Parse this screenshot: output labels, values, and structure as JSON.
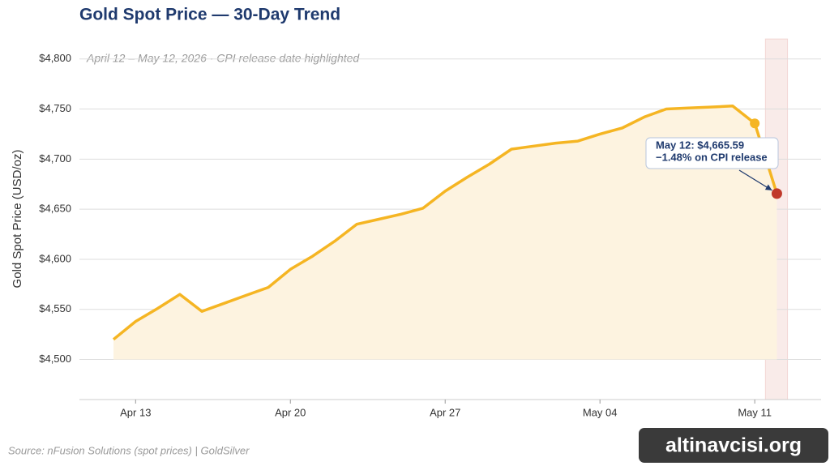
{
  "chart_data": {
    "type": "line",
    "title": "Gold Spot Price — 30-Day Trend",
    "subtitle": "April 12 – May 12, 2026  ·  CPI release date highlighted",
    "y_label": "Gold Spot Price (USD/oz)",
    "source": "Source: nFusion Solutions (spot prices) | GoldSilver",
    "watermark": "altinavcisi.org",
    "x": [
      "Apr 12",
      "Apr 13",
      "Apr 14",
      "Apr 15",
      "Apr 16",
      "Apr 17",
      "Apr 18",
      "Apr 19",
      "Apr 20",
      "Apr 21",
      "Apr 22",
      "Apr 23",
      "Apr 24",
      "Apr 25",
      "Apr 26",
      "Apr 27",
      "Apr 28",
      "Apr 29",
      "Apr 30",
      "May 01",
      "May 02",
      "May 03",
      "May 04",
      "May 05",
      "May 06",
      "May 07",
      "May 08",
      "May 09",
      "May 10",
      "May 11",
      "May 12"
    ],
    "series": [
      {
        "name": "Gold spot",
        "color": "#f5b523",
        "values": [
          4520,
          4538,
          4551,
          4565,
          4548,
          4556,
          4564,
          4572,
          4590,
          4603,
          4618,
          4635,
          4640,
          4645,
          4651,
          4668,
          4682,
          4695,
          4710,
          4713,
          4716,
          4718,
          4725,
          4731,
          4742,
          4750,
          4751,
          4752,
          4753,
          4735.7,
          4665.59
        ]
      }
    ],
    "area_color": "#fdf3e0",
    "area_base": 4500,
    "highlight": "May 12",
    "highlight_color": "#c0392b",
    "xticks": [
      "Apr 13",
      "Apr 20",
      "Apr 27",
      "May 04",
      "May 11"
    ],
    "ylim": [
      4460,
      4820
    ],
    "yticks": [
      {
        "value": 4500,
        "label": "$4,500"
      },
      {
        "value": 4550,
        "label": "$4,550"
      },
      {
        "value": 4600,
        "label": "$4,600"
      },
      {
        "value": 4650,
        "label": "$4,650"
      },
      {
        "value": 4700,
        "label": "$4,700"
      },
      {
        "value": 4750,
        "label": "$4,750"
      },
      {
        "value": 4800,
        "label": "$4,800"
      }
    ],
    "grid": true,
    "annotation": {
      "lines": [
        "May 12: $4,665.59",
        "−1.48% on CPI release"
      ]
    }
  }
}
